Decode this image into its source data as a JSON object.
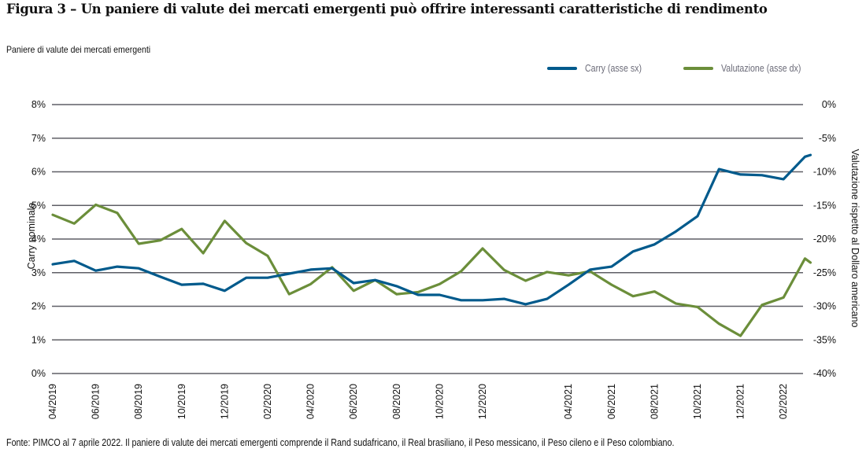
{
  "title": "Figura 3 – Un paniere di valute dei mercati emergenti può offrire interessanti caratteristiche di rendimento",
  "subtitle": "Paniere di valute dei mercati emergenti",
  "legend": [
    {
      "label": "Carry (asse sx)",
      "color": "#005a8c"
    },
    {
      "label": "Valutazione (asse dx)",
      "color": "#6b8e3a"
    }
  ],
  "source": "Fonte: PIMCO al 7 aprile 2022. Il paniere di valute dei mercati emergenti comprende il Rand sudafricano, il Real brasiliano, il Peso messicano, il Peso cileno e il Peso colombiano.",
  "chart_data": {
    "type": "line",
    "title": "Figura 3 – Un paniere di valute dei mercati emergenti può offrire interessanti caratteristiche di rendimento",
    "subtitle": "Paniere di valute dei mercati emergenti",
    "xlabel": "",
    "ylabel": "Carry nominale",
    "y2label": "Valutazione rispetto al Dollaro americano",
    "ylim": [
      0,
      8
    ],
    "y2lim": [
      -40,
      0
    ],
    "yticks": [
      "0%",
      "1%",
      "2%",
      "3%",
      "4%",
      "5%",
      "6%",
      "7%",
      "8%"
    ],
    "y2ticks": [
      "-40%",
      "-35%",
      "-30%",
      "-25%",
      "-20%",
      "-15%",
      "-10%",
      "-5%",
      "0%"
    ],
    "xticks": [
      "04/2019",
      "06/2019",
      "08/2019",
      "10/2019",
      "12/2019",
      "02/2020",
      "04/2020",
      "06/2020",
      "08/2020",
      "10/2020",
      "12/2020",
      "04/2021",
      "06/2021",
      "08/2021",
      "10/2021",
      "12/2021",
      "02/2022"
    ],
    "grid": true,
    "legend_position": "top-right",
    "x": [
      "04/2019",
      "05/2019",
      "06/2019",
      "07/2019",
      "08/2019",
      "09/2019",
      "10/2019",
      "11/2019",
      "12/2019",
      "01/2020",
      "02/2020",
      "03/2020",
      "04/2020",
      "05/2020",
      "06/2020",
      "07/2020",
      "08/2020",
      "09/2020",
      "10/2020",
      "11/2020",
      "12/2020",
      "01/2021",
      "02/2021",
      "03/2021",
      "04/2021",
      "05/2021",
      "06/2021",
      "07/2021",
      "08/2021",
      "09/2021",
      "10/2021",
      "11/2021",
      "12/2021",
      "01/2022",
      "02/2022",
      "03/2022",
      "04/2022"
    ],
    "series": [
      {
        "name": "Carry (asse sx)",
        "axis": "left",
        "color": "#005a8c",
        "values": [
          3.25,
          3.35,
          3.06,
          3.18,
          3.13,
          2.88,
          2.64,
          2.67,
          2.46,
          2.85,
          2.85,
          2.97,
          3.09,
          3.13,
          2.69,
          2.78,
          2.6,
          2.34,
          2.34,
          2.18,
          2.18,
          2.22,
          2.06,
          2.22,
          2.64,
          3.09,
          3.18,
          3.63,
          3.84,
          4.23,
          4.68,
          6.08,
          5.92,
          5.9,
          5.78,
          6.45,
          6.5
        ]
      },
      {
        "name": "Valutazione (asse dx)",
        "axis": "right",
        "color": "#6b8e3a",
        "values": [
          -16.4,
          -17.7,
          -14.9,
          -16.1,
          -20.7,
          -20.2,
          -18.5,
          -22.1,
          -17.3,
          -20.6,
          -22.5,
          -28.2,
          -26.7,
          -24.2,
          -27.7,
          -26.1,
          -28.2,
          -27.9,
          -26.7,
          -24.8,
          -21.4,
          -24.6,
          -26.2,
          -24.9,
          -25.4,
          -24.8,
          -26.8,
          -28.5,
          -27.8,
          -29.6,
          -30.1,
          -32.6,
          -34.4,
          -29.8,
          -28.7,
          -22.9,
          -23.5
        ]
      }
    ]
  }
}
